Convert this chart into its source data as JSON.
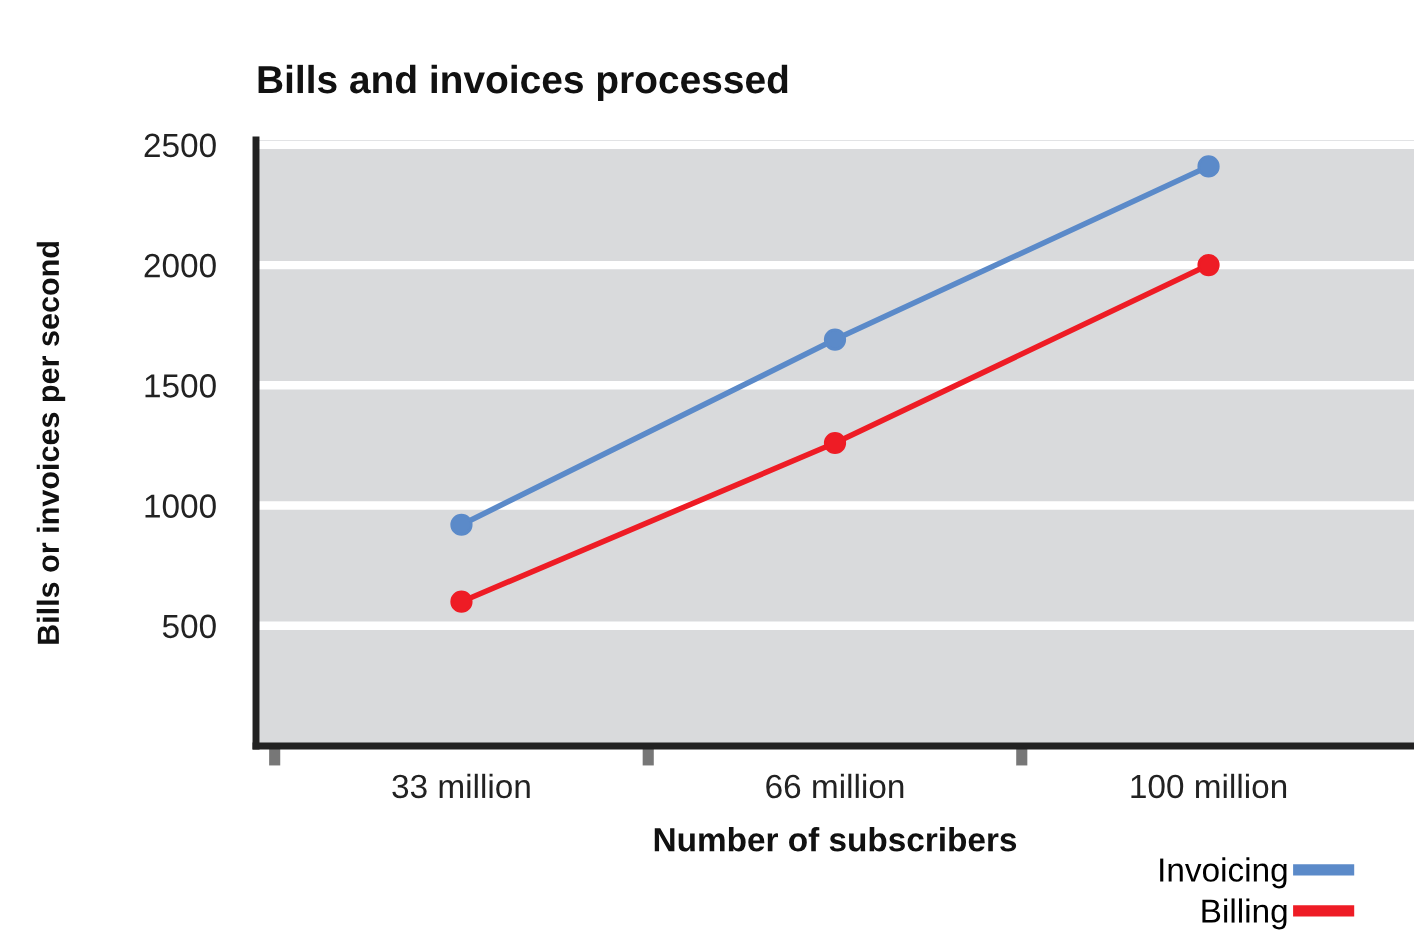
{
  "chart_data": {
    "type": "line",
    "title": "Bills and invoices processed",
    "xlabel": "Number of subscribers",
    "ylabel": "Bills or invoices per second",
    "categories": [
      "33 million",
      "66 million",
      "100 million"
    ],
    "series": [
      {
        "name": "Invoicing",
        "color": "#5b8ac9",
        "values": [
          920,
          1690,
          2410
        ]
      },
      {
        "name": "Billing",
        "color": "#ee1c25",
        "values": [
          600,
          1260,
          2000
        ]
      }
    ],
    "ylim": [
      0,
      2520
    ],
    "yticks": [
      500,
      1000,
      1500,
      2000,
      2500
    ],
    "grid": "y",
    "legend": "bottom right",
    "marker": "circle",
    "line_style": "solid"
  }
}
